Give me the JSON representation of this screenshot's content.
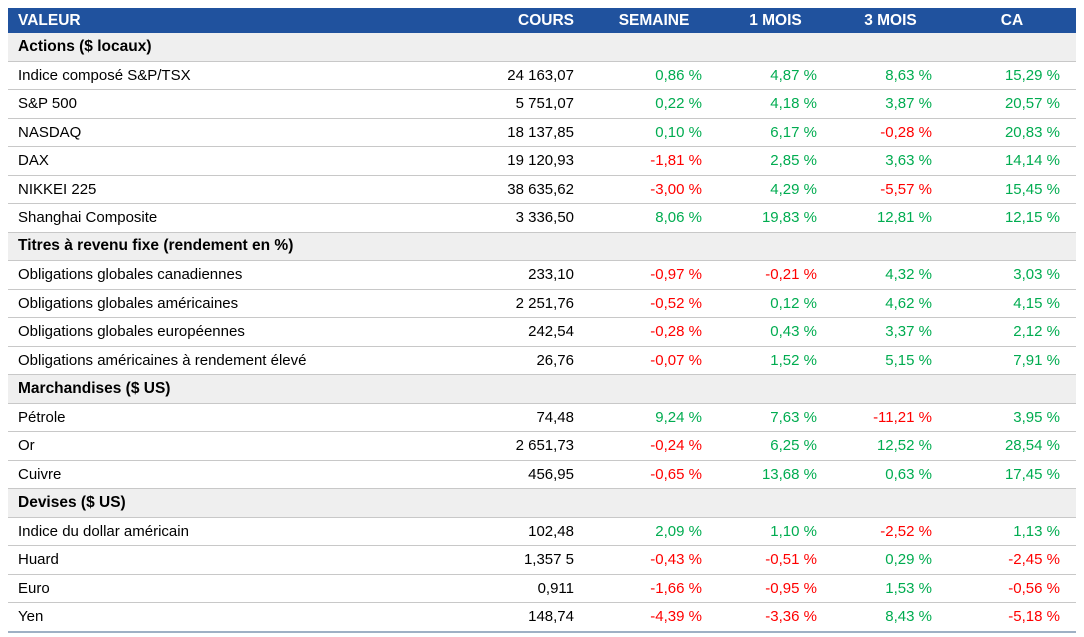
{
  "chart_data": {
    "type": "table",
    "columns": [
      "VALEUR",
      "COURS",
      "SEMAINE",
      "1 MOIS",
      "3 MOIS",
      "CA"
    ],
    "sections": [
      {
        "title": "Actions ($ locaux)",
        "rows": [
          {
            "name": "Indice composé S&P/TSX",
            "cours": "24 163,07",
            "pct": [
              "0,86 %",
              "4,87 %",
              "8,63 %",
              "15,29 %"
            ]
          },
          {
            "name": "S&P 500",
            "cours": "5 751,07",
            "pct": [
              "0,22 %",
              "4,18 %",
              "3,87 %",
              "20,57 %"
            ]
          },
          {
            "name": "NASDAQ",
            "cours": "18 137,85",
            "pct": [
              "0,10 %",
              "6,17 %",
              "-0,28 %",
              "20,83 %"
            ]
          },
          {
            "name": "DAX",
            "cours": "19 120,93",
            "pct": [
              "-1,81 %",
              "2,85 %",
              "3,63 %",
              "14,14 %"
            ]
          },
          {
            "name": "NIKKEI 225",
            "cours": "38 635,62",
            "pct": [
              "-3,00 %",
              "4,29 %",
              "-5,57 %",
              "15,45 %"
            ]
          },
          {
            "name": "Shanghai Composite",
            "cours": "3 336,50",
            "pct": [
              "8,06 %",
              "19,83 %",
              "12,81 %",
              "12,15 %"
            ]
          }
        ]
      },
      {
        "title": "Titres à revenu fixe (rendement en %)",
        "rows": [
          {
            "name": "Obligations globales canadiennes",
            "cours": "233,10",
            "pct": [
              "-0,97 %",
              "-0,21 %",
              "4,32 %",
              "3,03 %"
            ]
          },
          {
            "name": "Obligations globales américaines",
            "cours": "2 251,76",
            "pct": [
              "-0,52 %",
              "0,12 %",
              "4,62 %",
              "4,15 %"
            ]
          },
          {
            "name": "Obligations globales européennes",
            "cours": "242,54",
            "pct": [
              "-0,28 %",
              "0,43 %",
              "3,37 %",
              "2,12 %"
            ]
          },
          {
            "name": "Obligations américaines à rendement élevé",
            "cours": "26,76",
            "pct": [
              "-0,07 %",
              "1,52 %",
              "5,15 %",
              "7,91 %"
            ]
          }
        ]
      },
      {
        "title": "Marchandises ($ US)",
        "rows": [
          {
            "name": "Pétrole",
            "cours": "74,48",
            "pct": [
              "9,24 %",
              "7,63 %",
              "-11,21 %",
              "3,95 %"
            ]
          },
          {
            "name": "Or",
            "cours": "2 651,73",
            "pct": [
              "-0,24 %",
              "6,25 %",
              "12,52 %",
              "28,54 %"
            ]
          },
          {
            "name": "Cuivre",
            "cours": "456,95",
            "pct": [
              "-0,65 %",
              "13,68 %",
              "0,63 %",
              "17,45 %"
            ]
          }
        ]
      },
      {
        "title": "Devises ($ US)",
        "rows": [
          {
            "name": "Indice du dollar américain",
            "cours": "102,48",
            "pct": [
              "2,09 %",
              "1,10 %",
              "-2,52 %",
              "1,13 %"
            ]
          },
          {
            "name": "Huard",
            "cours": "1,357 5",
            "pct": [
              "-0,43 %",
              "-0,51 %",
              "0,29 %",
              "-2,45 %"
            ]
          },
          {
            "name": "Euro",
            "cours": "0,911",
            "pct": [
              "-1,66 %",
              "-0,95 %",
              "1,53 %",
              "-0,56 %"
            ]
          },
          {
            "name": "Yen",
            "cours": "148,74",
            "pct": [
              "-4,39 %",
              "-3,36 %",
              "8,43 %",
              "-5,18 %"
            ]
          }
        ]
      }
    ]
  },
  "colors": {
    "header_bg": "#20529E",
    "header_text": "#FFFFFF",
    "section_bg": "#EFEFEF",
    "positive": "#00AC50",
    "negative": "#FF0000",
    "row_border": "#C8C8C8",
    "bottom_border": "#9FB0C4"
  }
}
